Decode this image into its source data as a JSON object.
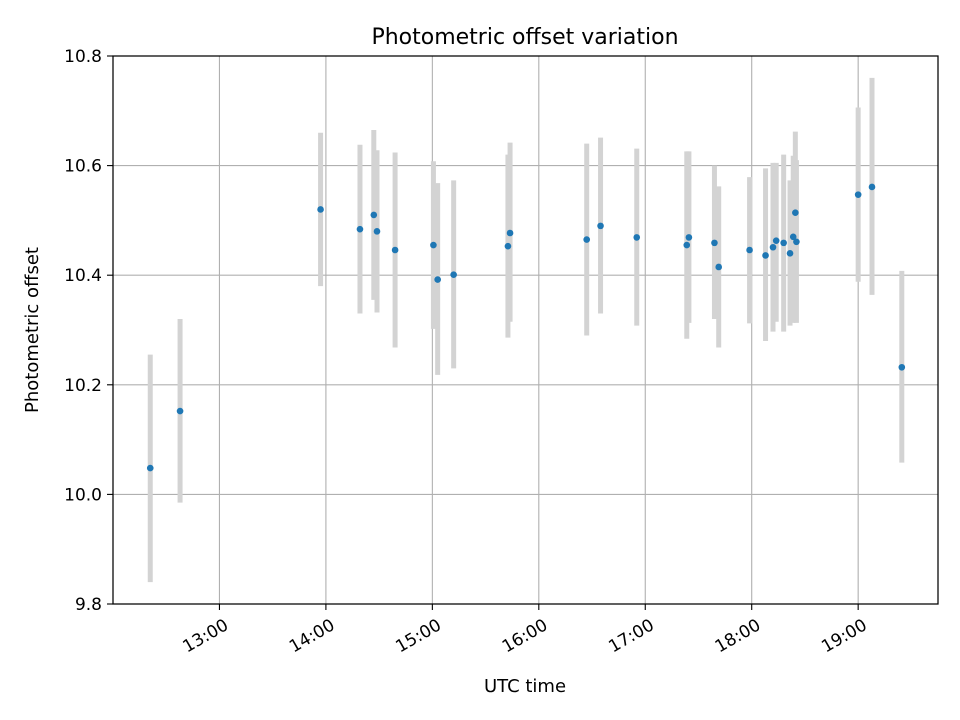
{
  "chart_data": {
    "type": "scatter",
    "title": "Photometric offset variation",
    "xlabel": "UTC time",
    "ylabel": "Photometric offset",
    "x_unit": "hours (UTC)",
    "xlim": [
      12.0,
      19.75
    ],
    "ylim": [
      9.8,
      10.8
    ],
    "x_ticks": [
      {
        "value": 13,
        "label": "13:00"
      },
      {
        "value": 14,
        "label": "14:00"
      },
      {
        "value": 15,
        "label": "15:00"
      },
      {
        "value": 16,
        "label": "16:00"
      },
      {
        "value": 17,
        "label": "17:00"
      },
      {
        "value": 18,
        "label": "18:00"
      },
      {
        "value": 19,
        "label": "19:00"
      }
    ],
    "y_ticks": [
      {
        "value": 9.8,
        "label": "9.8"
      },
      {
        "value": 10.0,
        "label": "10.0"
      },
      {
        "value": 10.2,
        "label": "10.2"
      },
      {
        "value": 10.4,
        "label": "10.4"
      },
      {
        "value": 10.6,
        "label": "10.6"
      },
      {
        "value": 10.8,
        "label": "10.8"
      }
    ],
    "grid": true,
    "legend": "none",
    "colors": {
      "point": "#1f77b4",
      "errorbar": "#d3d3d3",
      "grid": "#b0b0b0",
      "axes": "#000000"
    },
    "series": [
      {
        "points": [
          {
            "x": 12.35,
            "y": 10.048,
            "ylow": 9.84,
            "yhigh": 10.255
          },
          {
            "x": 12.63,
            "y": 10.152,
            "ylow": 9.985,
            "yhigh": 10.32
          },
          {
            "x": 13.95,
            "y": 10.52,
            "ylow": 10.38,
            "yhigh": 10.66
          },
          {
            "x": 14.32,
            "y": 10.484,
            "ylow": 10.33,
            "yhigh": 10.638
          },
          {
            "x": 14.45,
            "y": 10.51,
            "ylow": 10.355,
            "yhigh": 10.665
          },
          {
            "x": 14.48,
            "y": 10.48,
            "ylow": 10.332,
            "yhigh": 10.628
          },
          {
            "x": 14.65,
            "y": 10.446,
            "ylow": 10.268,
            "yhigh": 10.624
          },
          {
            "x": 15.01,
            "y": 10.455,
            "ylow": 10.302,
            "yhigh": 10.608
          },
          {
            "x": 15.05,
            "y": 10.392,
            "ylow": 10.218,
            "yhigh": 10.568
          },
          {
            "x": 15.2,
            "y": 10.401,
            "ylow": 10.23,
            "yhigh": 10.573
          },
          {
            "x": 15.71,
            "y": 10.453,
            "ylow": 10.286,
            "yhigh": 10.62
          },
          {
            "x": 15.73,
            "y": 10.477,
            "ylow": 10.315,
            "yhigh": 10.642
          },
          {
            "x": 16.45,
            "y": 10.465,
            "ylow": 10.29,
            "yhigh": 10.64
          },
          {
            "x": 16.58,
            "y": 10.49,
            "ylow": 10.33,
            "yhigh": 10.651
          },
          {
            "x": 16.92,
            "y": 10.469,
            "ylow": 10.308,
            "yhigh": 10.631
          },
          {
            "x": 17.39,
            "y": 10.455,
            "ylow": 10.284,
            "yhigh": 10.626
          },
          {
            "x": 17.41,
            "y": 10.469,
            "ylow": 10.313,
            "yhigh": 10.626
          },
          {
            "x": 17.65,
            "y": 10.459,
            "ylow": 10.32,
            "yhigh": 10.6
          },
          {
            "x": 17.69,
            "y": 10.415,
            "ylow": 10.268,
            "yhigh": 10.562
          },
          {
            "x": 17.98,
            "y": 10.446,
            "ylow": 10.312,
            "yhigh": 10.579
          },
          {
            "x": 18.13,
            "y": 10.436,
            "ylow": 10.28,
            "yhigh": 10.595
          },
          {
            "x": 18.2,
            "y": 10.451,
            "ylow": 10.297,
            "yhigh": 10.605
          },
          {
            "x": 18.23,
            "y": 10.463,
            "ylow": 10.315,
            "yhigh": 10.605
          },
          {
            "x": 18.3,
            "y": 10.459,
            "ylow": 10.297,
            "yhigh": 10.62
          },
          {
            "x": 18.36,
            "y": 10.44,
            "ylow": 10.308,
            "yhigh": 10.573
          },
          {
            "x": 18.39,
            "y": 10.47,
            "ylow": 10.313,
            "yhigh": 10.618
          },
          {
            "x": 18.41,
            "y": 10.514,
            "ylow": 10.363,
            "yhigh": 10.662
          },
          {
            "x": 18.42,
            "y": 10.461,
            "ylow": 10.313,
            "yhigh": 10.61
          },
          {
            "x": 19.0,
            "y": 10.547,
            "ylow": 10.388,
            "yhigh": 10.706
          },
          {
            "x": 19.13,
            "y": 10.561,
            "ylow": 10.364,
            "yhigh": 10.76
          },
          {
            "x": 19.41,
            "y": 10.232,
            "ylow": 10.058,
            "yhigh": 10.408
          }
        ]
      }
    ]
  }
}
